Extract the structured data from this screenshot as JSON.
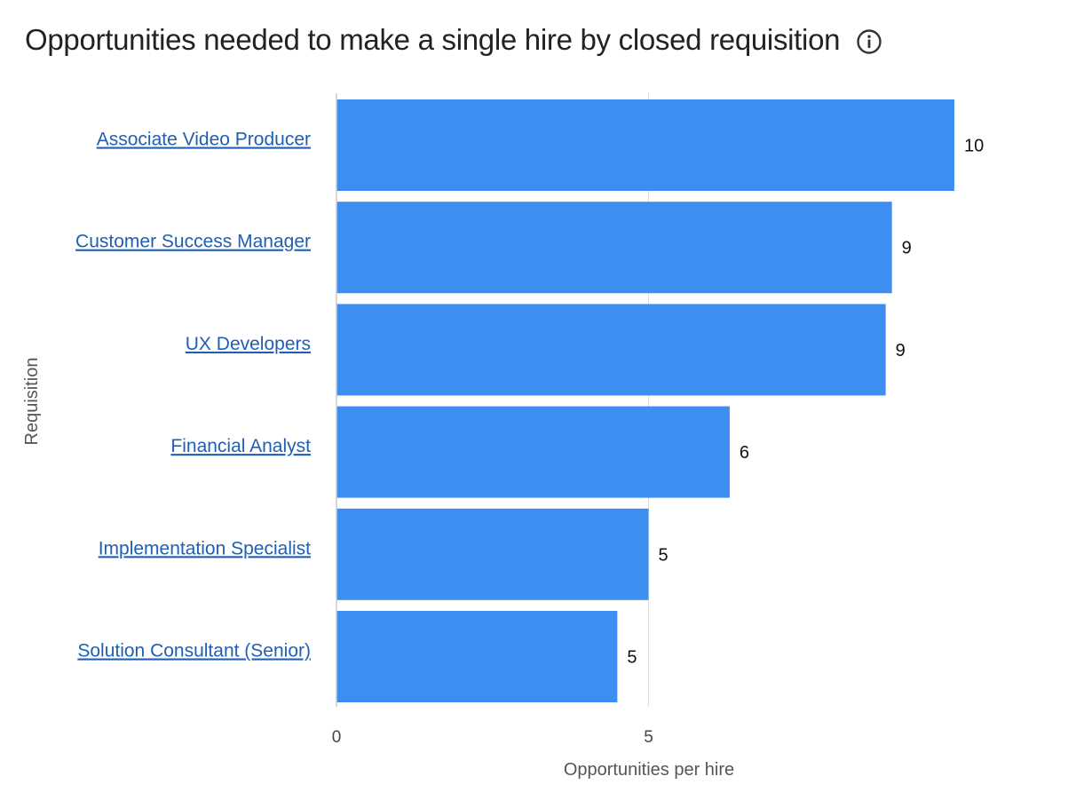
{
  "header": {
    "title": "Opportunities needed to make a single hire by closed requisition",
    "info_icon": "info-icon"
  },
  "colors": {
    "bar": "#3d8ef0",
    "link": "#1f5fb4",
    "grid": "#dddddd",
    "axis": "#cccccc"
  },
  "chart_data": {
    "type": "bar",
    "orientation": "horizontal",
    "categories": [
      "Associate Video Producer",
      "Customer Success Manager",
      "UX Developers",
      "Financial Analyst",
      "Implementation Specialist",
      "Solution Consultant (Senior)"
    ],
    "values": [
      9.9,
      8.9,
      8.8,
      6.3,
      5.0,
      4.5
    ],
    "data_labels": [
      "10",
      "9",
      "9",
      "6",
      "5",
      "5"
    ],
    "xlabel": "Opportunities per hire",
    "ylabel": "Requisition",
    "xlim": [
      0,
      10
    ],
    "xticks": [
      0,
      5
    ],
    "xtick_labels": [
      "0",
      "5"
    ],
    "grid": true,
    "legend": "none"
  }
}
